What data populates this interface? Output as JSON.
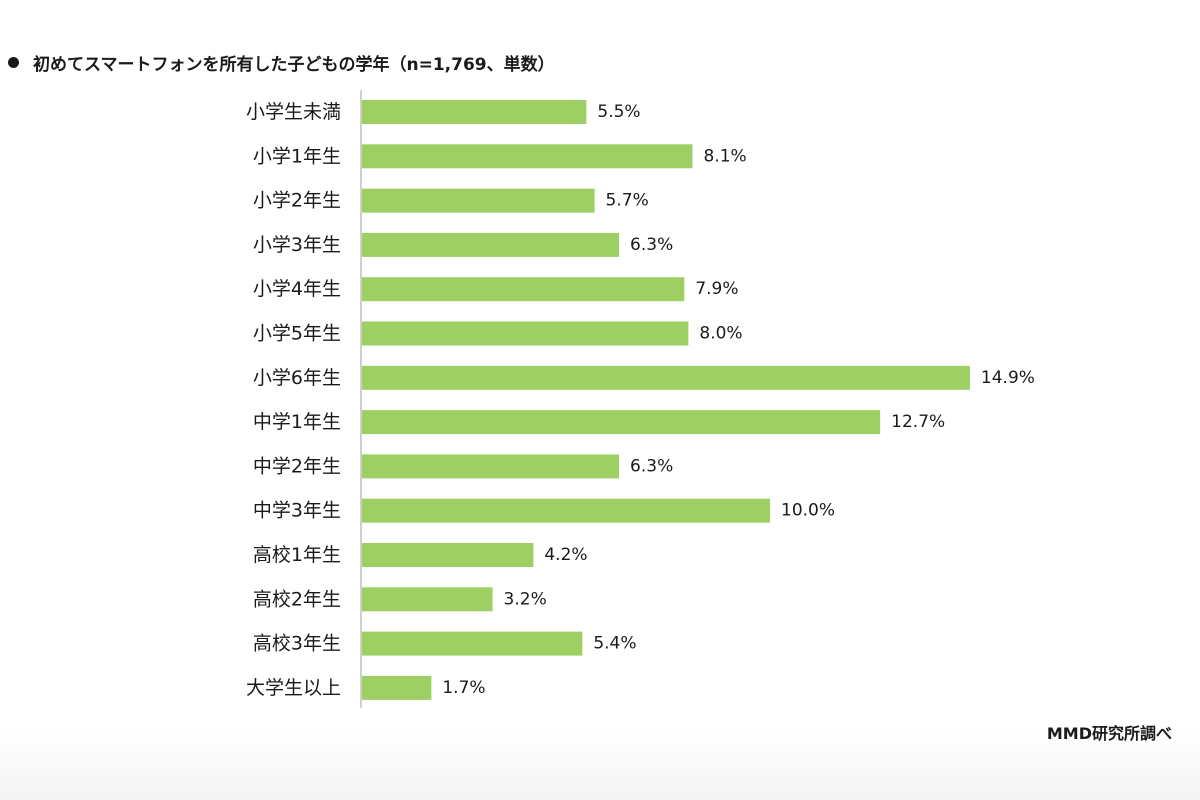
{
  "chart_data": {
    "type": "bar",
    "orientation": "horizontal",
    "title": "初めてスマートフォンを所有した子どもの学年（n=1,769、単数）",
    "categories": [
      "小学生未満",
      "小学1年生",
      "小学2年生",
      "小学3年生",
      "小学4年生",
      "小学5年生",
      "小学6年生",
      "中学1年生",
      "中学2年生",
      "中学3年生",
      "高校1年生",
      "高校2年生",
      "高校3年生",
      "大学生以上"
    ],
    "values": [
      5.5,
      8.1,
      5.7,
      6.3,
      7.9,
      8.0,
      14.9,
      12.7,
      6.3,
      10.0,
      4.2,
      3.2,
      5.4,
      1.7
    ],
    "value_labels": [
      "5.5%",
      "8.1%",
      "5.7%",
      "6.3%",
      "7.9%",
      "8.0%",
      "14.9%",
      "12.7%",
      "6.3%",
      "10.0%",
      "4.2%",
      "3.2%",
      "5.4%",
      "1.7%"
    ],
    "xlim": [
      0,
      15
    ],
    "grid": false,
    "legend": "none",
    "bar_color": "#9dcf63",
    "axis_color": "#bfbfbf"
  },
  "source": "MMD研究所調べ"
}
